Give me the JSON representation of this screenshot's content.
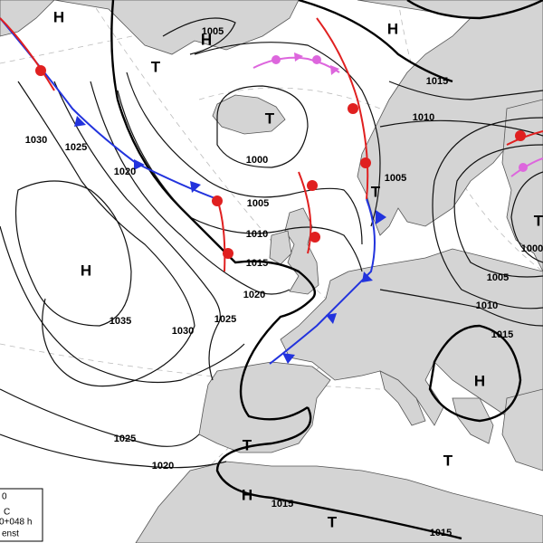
{
  "pressure_centers": [
    "H",
    "H",
    "T",
    "T",
    "H",
    "H",
    "T",
    "T",
    "H",
    "T",
    "H",
    "T",
    "T"
  ],
  "isobar_labels": [
    "1005",
    "1015",
    "1010",
    "1030",
    "1025",
    "1020",
    "1000",
    "1005",
    "1005",
    "1010",
    "1015",
    "1020",
    "1025",
    "1035",
    "1030",
    "1000",
    "1005",
    "1010",
    "1015",
    "1025",
    "1020",
    "1015",
    "1015"
  ],
  "legend": [
    "0",
    "C",
    "0+048 h",
    "enst"
  ]
}
